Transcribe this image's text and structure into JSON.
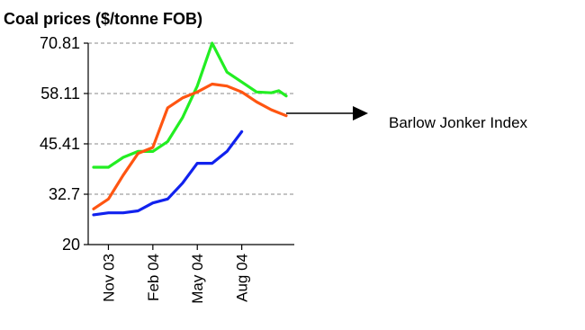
{
  "chart_data": {
    "type": "line",
    "title": "Coal prices ($/tonne FOB)",
    "xlabel": "",
    "ylabel": "",
    "yticks": [
      "70.81",
      "58.11",
      "45.41",
      "32.7",
      "20"
    ],
    "ylim": [
      20,
      70.81
    ],
    "xlim": [
      0,
      13
    ],
    "xticks": [
      {
        "label": "Nov 03",
        "x": 1
      },
      {
        "label": "Feb 04",
        "x": 4
      },
      {
        "label": "May 04",
        "x": 7
      },
      {
        "label": "Aug 04",
        "x": 10
      }
    ],
    "grid": true,
    "annotation": "Barlow Jonker Index",
    "series": [
      {
        "color": "#22ee22",
        "x": [
          0,
          1,
          2,
          3,
          4,
          5,
          6,
          7,
          8,
          9,
          10,
          11,
          12,
          12.5,
          13
        ],
        "values": [
          39.5,
          39.5,
          42,
          43.5,
          43.5,
          46,
          52,
          60,
          70.8,
          63.5,
          61,
          58.5,
          58.3,
          58.8,
          57.5
        ]
      },
      {
        "color": "#ff5511",
        "x": [
          0,
          1,
          2,
          3,
          4,
          5,
          6,
          7,
          8,
          9,
          10,
          11,
          12,
          13
        ],
        "values": [
          29,
          31.5,
          37.5,
          43,
          44.5,
          54.5,
          57,
          58.5,
          60.5,
          60,
          58.5,
          56,
          54,
          52.5
        ]
      },
      {
        "color": "#1122ee",
        "x": [
          0,
          1,
          2,
          3,
          4,
          5,
          6,
          7,
          8,
          9,
          10
        ],
        "values": [
          27.5,
          28,
          28,
          28.5,
          30.5,
          31.5,
          35.5,
          40.5,
          40.5,
          43.5,
          48.5
        ]
      }
    ]
  }
}
